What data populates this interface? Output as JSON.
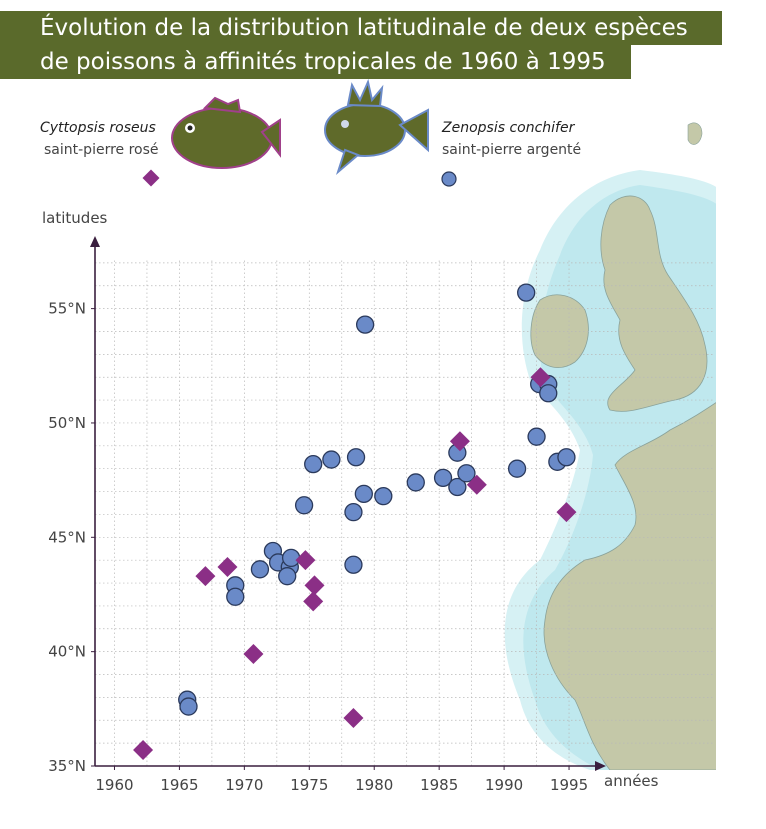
{
  "header": {
    "title_line1": "Évolution de la distribution latitudinale de deux espèces",
    "title_line2": "de poissons à affinités tropicales de 1960 à 1995"
  },
  "legend": {
    "species1": {
      "latin_name": "Cyttopsis roseus",
      "common_name": "saint-pierre rosé",
      "marker": "diamond",
      "color": "#8b2f86"
    },
    "species2": {
      "latin_name": "Zenopsis conchifer",
      "common_name": "saint-pierre argenté",
      "marker": "circle",
      "color": "#6a8ac8"
    }
  },
  "colors": {
    "title_bar": "#5a6a2b",
    "fish_body": "#5f6a2a",
    "land": "#c4c8a8",
    "sea_halo": "#cfeef2",
    "axis": "#3a1f3f"
  },
  "chart_data": {
    "type": "scatter",
    "xlabel": "années",
    "ylabel": "latitudes",
    "xlim": [
      1958.5,
      1998
    ],
    "ylim": [
      35,
      58
    ],
    "x_ticks": [
      "1960",
      "1965",
      "1970",
      "1975",
      "1980",
      "1985",
      "1990",
      "1995"
    ],
    "y_ticks": [
      "35°N",
      "40°N",
      "45°N",
      "50°N",
      "55°N"
    ],
    "grid": true,
    "series": [
      {
        "name": "Cyttopsis roseus",
        "marker": "diamond",
        "points": [
          {
            "x": 1962.2,
            "y": 35.7
          },
          {
            "x": 1967.0,
            "y": 43.3
          },
          {
            "x": 1968.7,
            "y": 43.7
          },
          {
            "x": 1970.7,
            "y": 39.9
          },
          {
            "x": 1974.7,
            "y": 44.0
          },
          {
            "x": 1975.4,
            "y": 42.9
          },
          {
            "x": 1975.3,
            "y": 42.2
          },
          {
            "x": 1978.4,
            "y": 37.1
          },
          {
            "x": 1986.6,
            "y": 49.2
          },
          {
            "x": 1987.9,
            "y": 47.3
          },
          {
            "x": 1992.8,
            "y": 52.0
          },
          {
            "x": 1994.8,
            "y": 46.1
          }
        ]
      },
      {
        "name": "Zenopsis conchifer",
        "marker": "circle",
        "points": [
          {
            "x": 1965.6,
            "y": 37.9
          },
          {
            "x": 1965.7,
            "y": 37.6
          },
          {
            "x": 1969.3,
            "y": 42.9
          },
          {
            "x": 1969.3,
            "y": 42.4
          },
          {
            "x": 1971.2,
            "y": 43.6
          },
          {
            "x": 1972.2,
            "y": 44.4
          },
          {
            "x": 1972.6,
            "y": 43.9
          },
          {
            "x": 1973.5,
            "y": 43.7
          },
          {
            "x": 1973.3,
            "y": 43.3
          },
          {
            "x": 1973.6,
            "y": 44.1
          },
          {
            "x": 1974.6,
            "y": 46.4
          },
          {
            "x": 1975.3,
            "y": 48.2
          },
          {
            "x": 1976.7,
            "y": 48.4
          },
          {
            "x": 1978.4,
            "y": 46.1
          },
          {
            "x": 1978.4,
            "y": 43.8
          },
          {
            "x": 1978.6,
            "y": 48.5
          },
          {
            "x": 1979.3,
            "y": 54.3
          },
          {
            "x": 1979.2,
            "y": 46.9
          },
          {
            "x": 1980.7,
            "y": 46.8
          },
          {
            "x": 1983.2,
            "y": 47.4
          },
          {
            "x": 1985.3,
            "y": 47.6
          },
          {
            "x": 1986.4,
            "y": 48.7
          },
          {
            "x": 1986.4,
            "y": 47.2
          },
          {
            "x": 1987.1,
            "y": 47.8
          },
          {
            "x": 1991.0,
            "y": 48.0
          },
          {
            "x": 1991.7,
            "y": 55.7
          },
          {
            "x": 1992.5,
            "y": 49.4
          },
          {
            "x": 1992.7,
            "y": 51.7
          },
          {
            "x": 1993.4,
            "y": 51.7
          },
          {
            "x": 1993.4,
            "y": 51.3
          },
          {
            "x": 1994.1,
            "y": 48.3
          },
          {
            "x": 1994.8,
            "y": 48.5
          }
        ]
      }
    ]
  }
}
